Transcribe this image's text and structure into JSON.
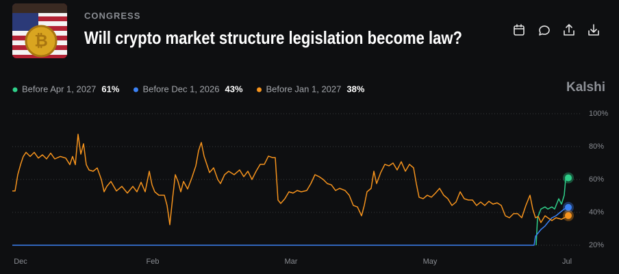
{
  "header": {
    "category": "CONGRESS",
    "title": "Will crypto market structure legislation become law?"
  },
  "brand": "Kalshi",
  "chart_data": {
    "type": "line",
    "xlim": [
      0,
      832
    ],
    "ylim": [
      20,
      100
    ],
    "xticks": [
      {
        "value": 12,
        "label": "Dec"
      },
      {
        "value": 205,
        "label": "Feb"
      },
      {
        "value": 407,
        "label": "Mar"
      },
      {
        "value": 610,
        "label": "May"
      },
      {
        "value": 810,
        "label": "Jul"
      }
    ],
    "yticks": [
      {
        "value": 100,
        "label": "100%"
      },
      {
        "value": 80,
        "label": "80%"
      },
      {
        "value": 60,
        "label": "60%"
      },
      {
        "value": 40,
        "label": "40%"
      },
      {
        "value": 20,
        "label": "20%"
      }
    ],
    "grid": true,
    "series": [
      {
        "name": "Before Apr 1, 2027",
        "current_label": "61%",
        "color": "#2fd08a",
        "x": [
          765,
          767,
          772,
          778,
          782,
          788,
          792,
          798,
          802,
          806,
          808,
          812
        ],
        "values": [
          20,
          36.7,
          42,
          43.3,
          42,
          43.3,
          42,
          48.3,
          45,
          50.4,
          60,
          61
        ]
      },
      {
        "name": "Before Dec 1, 2026",
        "current_label": "43%",
        "color": "#3b82f6",
        "x": [
          0,
          762,
          764,
          772,
          778,
          782,
          788,
          794,
          800,
          806,
          812
        ],
        "values": [
          20,
          20,
          25.4,
          29.6,
          31.7,
          33.8,
          36.7,
          37.9,
          40,
          42,
          43
        ]
      },
      {
        "name": "Before Jan 1, 2027",
        "current_label": "38%",
        "color": "#f7941d",
        "x": [
          0,
          4,
          8,
          12,
          16,
          20,
          26,
          32,
          38,
          44,
          50,
          56,
          62,
          70,
          78,
          84,
          88,
          92,
          96,
          100,
          104,
          108,
          112,
          118,
          124,
          130,
          134,
          138,
          144,
          152,
          160,
          168,
          176,
          182,
          188,
          194,
          200,
          204,
          208,
          214,
          222,
          226,
          230,
          234,
          238,
          242,
          246,
          250,
          256,
          262,
          268,
          272,
          276,
          280,
          284,
          288,
          294,
          300,
          304,
          310,
          316,
          324,
          332,
          338,
          344,
          350,
          356,
          362,
          368,
          374,
          380,
          384,
          388,
          392,
          398,
          404,
          410,
          416,
          422,
          430,
          436,
          442,
          448,
          454,
          460,
          466,
          472,
          478,
          486,
          492,
          498,
          504,
          510,
          514,
          518,
          524,
          528,
          532,
          538,
          544,
          550,
          556,
          562,
          568,
          574,
          580,
          586,
          590,
          594,
          600,
          606,
          612,
          618,
          624,
          630,
          636,
          642,
          648,
          654,
          660,
          666,
          672,
          678,
          684,
          690,
          696,
          702,
          708,
          714,
          720,
          726,
          732,
          738,
          744,
          750,
          756,
          760,
          764,
          768,
          772,
          778,
          782,
          788,
          794,
          802,
          812
        ],
        "values": [
          53,
          53,
          63,
          69,
          74,
          76.5,
          74,
          76.5,
          73,
          75,
          72.5,
          76,
          72.5,
          74,
          73,
          69,
          74,
          69,
          87.5,
          75.4,
          81.7,
          69,
          65.8,
          65,
          67,
          60,
          52.5,
          55.8,
          58.8,
          53,
          55.8,
          51.7,
          55.8,
          52.5,
          58.3,
          52.5,
          65,
          56.7,
          52.5,
          50.4,
          50.4,
          44.2,
          32.5,
          48.3,
          62.9,
          58.8,
          52.5,
          58.8,
          54.2,
          60.8,
          68.3,
          77.5,
          82.5,
          74.2,
          69.2,
          64.2,
          67.1,
          60,
          57.5,
          62.9,
          65,
          62.9,
          65.8,
          61.7,
          65,
          60,
          65,
          69.2,
          69.2,
          74.2,
          73.3,
          73.3,
          47.5,
          45.4,
          48.3,
          52.5,
          51.7,
          53.3,
          52.5,
          53.3,
          57.5,
          62.9,
          61.7,
          60,
          57.5,
          56.7,
          53.3,
          54.6,
          53.3,
          50.4,
          44.2,
          43.3,
          37.9,
          44.2,
          52.5,
          54.6,
          65,
          57.5,
          64.2,
          69.2,
          68.3,
          70,
          65.8,
          70.8,
          65,
          69.2,
          67.1,
          57.5,
          49.2,
          48.3,
          50.4,
          49.2,
          51.7,
          54.6,
          50.4,
          48.3,
          44.2,
          46.3,
          52.5,
          48.3,
          47.5,
          47.5,
          44.2,
          46.3,
          44.2,
          46.7,
          45,
          45.8,
          44.2,
          37.9,
          36.7,
          39.2,
          39.2,
          36.7,
          44.2,
          50.4,
          42.1,
          36.7,
          37.5,
          33.8,
          37.9,
          36.7,
          35,
          36.7,
          35.8,
          38
        ]
      }
    ]
  }
}
